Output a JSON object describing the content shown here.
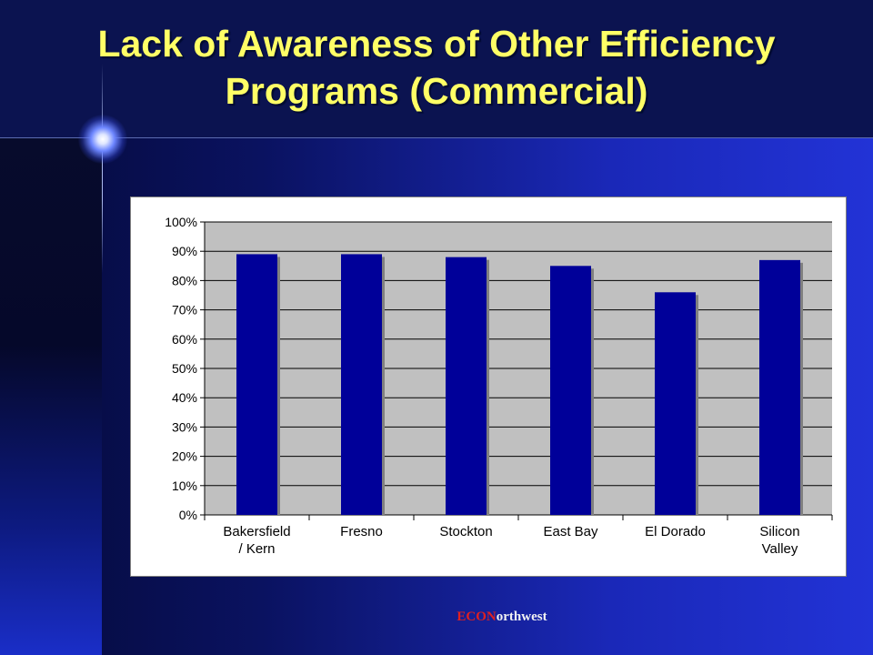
{
  "title": {
    "line1": "Lack of Awareness of Other Efficiency",
    "line2": "Programs (Commercial)"
  },
  "footer": {
    "econ": "ECON",
    "rest": "orthwest"
  },
  "colors": {
    "title": "#ffff66",
    "bar": "#000099",
    "bar_shadow": "#808080",
    "plot_background": "#c0c0c0",
    "footer_econ": "#e02020",
    "footer_rest": "#f2f2f2"
  },
  "chart_data": {
    "type": "bar",
    "categories": [
      [
        "Bakersfield",
        "/ Kern"
      ],
      [
        "Fresno"
      ],
      [
        "Stockton"
      ],
      [
        "East Bay"
      ],
      [
        "El Dorado"
      ],
      [
        "Silicon",
        "Valley"
      ]
    ],
    "values": [
      89,
      89,
      88,
      85,
      76,
      87
    ],
    "value_format": "percent",
    "ylim": [
      0,
      100
    ],
    "yticks": [
      "0%",
      "10%",
      "20%",
      "30%",
      "40%",
      "50%",
      "60%",
      "70%",
      "80%",
      "90%",
      "100%"
    ],
    "grid": "horizontal",
    "legend": "none",
    "title": "",
    "xlabel": "",
    "ylabel": ""
  }
}
